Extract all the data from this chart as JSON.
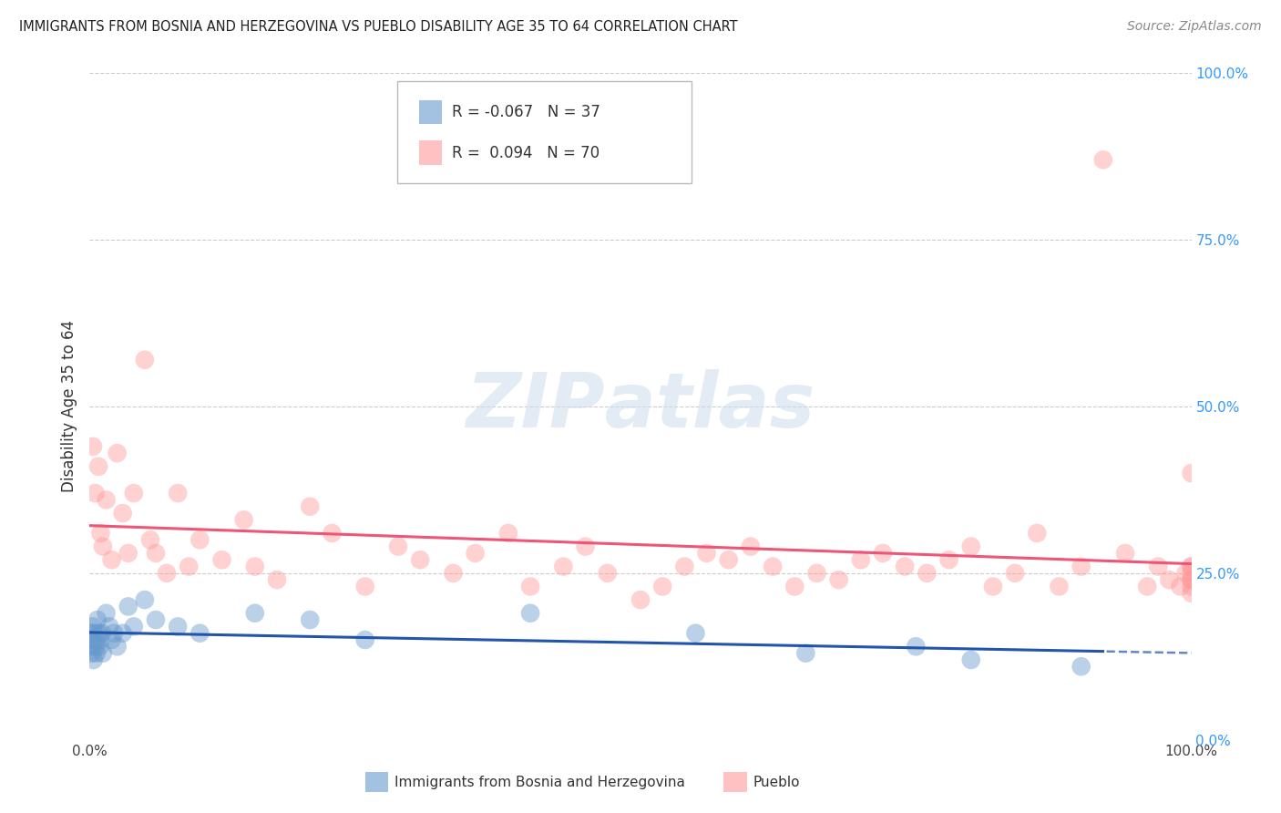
{
  "title": "IMMIGRANTS FROM BOSNIA AND HERZEGOVINA VS PUEBLO DISABILITY AGE 35 TO 64 CORRELATION CHART",
  "source": "Source: ZipAtlas.com",
  "ylabel": "Disability Age 35 to 64",
  "xlabel": "",
  "legend_blue_r": "-0.067",
  "legend_blue_n": "37",
  "legend_pink_r": "0.094",
  "legend_pink_n": "70",
  "legend_blue_label": "Immigrants from Bosnia and Herzegovina",
  "legend_pink_label": "Pueblo",
  "watermark": "ZIPatlas",
  "blue_color": "#6699CC",
  "pink_color": "#FF9999",
  "blue_trend_color": "#2255AA",
  "pink_trend_color": "#EE5577",
  "background_color": "#FFFFFF",
  "grid_color": "#CCCCCC",
  "blue_x": [
    0.1,
    0.15,
    0.2,
    0.25,
    0.3,
    0.35,
    0.4,
    0.5,
    0.55,
    0.6,
    0.7,
    0.8,
    0.9,
    1.0,
    1.1,
    1.2,
    1.5,
    1.8,
    2.0,
    2.2,
    2.5,
    3.0,
    3.5,
    4.0,
    5.0,
    6.0,
    8.0,
    10.0,
    15.0,
    20.0,
    25.0,
    40.0,
    55.0,
    65.0,
    75.0,
    80.0,
    90.0
  ],
  "blue_y": [
    16.0,
    14.0,
    13.0,
    15.0,
    17.0,
    12.0,
    16.0,
    14.0,
    15.0,
    13.0,
    18.0,
    16.0,
    14.0,
    15.0,
    16.0,
    13.0,
    19.0,
    17.0,
    15.0,
    16.0,
    14.0,
    16.0,
    20.0,
    17.0,
    21.0,
    18.0,
    17.0,
    16.0,
    19.0,
    18.0,
    15.0,
    19.0,
    16.0,
    13.0,
    14.0,
    12.0,
    11.0
  ],
  "pink_x": [
    0.3,
    0.5,
    0.8,
    1.0,
    1.2,
    1.5,
    2.0,
    2.5,
    3.0,
    3.5,
    4.0,
    5.0,
    5.5,
    6.0,
    7.0,
    8.0,
    9.0,
    10.0,
    12.0,
    14.0,
    15.0,
    17.0,
    20.0,
    22.0,
    25.0,
    28.0,
    30.0,
    33.0,
    35.0,
    38.0,
    40.0,
    43.0,
    45.0,
    47.0,
    50.0,
    52.0,
    54.0,
    56.0,
    58.0,
    60.0,
    62.0,
    64.0,
    66.0,
    68.0,
    70.0,
    72.0,
    74.0,
    76.0,
    78.0,
    80.0,
    82.0,
    84.0,
    86.0,
    88.0,
    90.0,
    92.0,
    94.0,
    96.0,
    97.0,
    98.0,
    99.0,
    99.5,
    100.0,
    100.0,
    100.0,
    100.0,
    100.0,
    100.0,
    100.0,
    100.0
  ],
  "pink_y": [
    44.0,
    37.0,
    41.0,
    31.0,
    29.0,
    36.0,
    27.0,
    43.0,
    34.0,
    28.0,
    37.0,
    57.0,
    30.0,
    28.0,
    25.0,
    37.0,
    26.0,
    30.0,
    27.0,
    33.0,
    26.0,
    24.0,
    35.0,
    31.0,
    23.0,
    29.0,
    27.0,
    25.0,
    28.0,
    31.0,
    23.0,
    26.0,
    29.0,
    25.0,
    21.0,
    23.0,
    26.0,
    28.0,
    27.0,
    29.0,
    26.0,
    23.0,
    25.0,
    24.0,
    27.0,
    28.0,
    26.0,
    25.0,
    27.0,
    29.0,
    23.0,
    25.0,
    31.0,
    23.0,
    26.0,
    87.0,
    28.0,
    23.0,
    26.0,
    24.0,
    23.0,
    25.0,
    26.0,
    24.0,
    25.0,
    23.0,
    24.0,
    22.0,
    26.0,
    40.0
  ],
  "xmin": 0.0,
  "xmax": 100.0,
  "ymin": 0.0,
  "ymax": 100.0,
  "yticks_right": [
    "0.0%",
    "25.0%",
    "50.0%",
    "75.0%",
    "100.0%"
  ],
  "yticks_right_vals": [
    0,
    25,
    50,
    75,
    100
  ],
  "xticks_vals": [
    0,
    100
  ],
  "xticks_labels": [
    "0.0%",
    "100.0%"
  ]
}
